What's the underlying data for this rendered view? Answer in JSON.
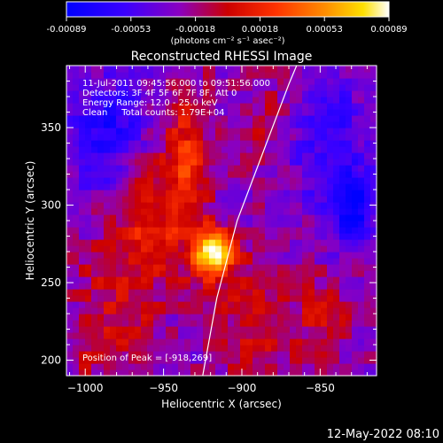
{
  "colorbar": {
    "ticks": [
      "-0.00089",
      "-0.00053",
      "-0.00018",
      "0.00018",
      "0.00053",
      "0.00089"
    ],
    "unit_label": "(photons cm⁻² s⁻¹ asec⁻²)"
  },
  "chart_data": {
    "type": "heatmap",
    "title": "Reconstructed RHESSI Image",
    "xlabel": "Heliocentric X (arcsec)",
    "ylabel": "Heliocentric Y (arcsec)",
    "xlim": [
      -1012,
      -814
    ],
    "ylim": [
      190,
      390
    ],
    "xticks": [
      -1000,
      -950,
      -900,
      -850
    ],
    "xtick_labels": [
      "−1000",
      "−950",
      "−900",
      "−850"
    ],
    "yticks": [
      200,
      250,
      300,
      350
    ],
    "ytick_labels": [
      "200",
      "250",
      "300",
      "350"
    ],
    "value_range": [
      -0.00089,
      0.00089
    ],
    "colormap": "blue-purple-red-yellow-white",
    "annotations": [
      "11-Jul-2011 09:45:56.000 to 09:51:56.000",
      "Detectors: 3F 4F 5F 6F 7F 8F, Att 0",
      "Energy Range: 12.0 - 25.0 keV",
      "Clean     Total counts: 1.79E+04",
      "Position of Peak = [-918,269]"
    ],
    "peak": {
      "x": -918,
      "y": 269,
      "value": 0.00089
    },
    "limb_line": [
      [
        -925,
        190
      ],
      [
        -916,
        240
      ],
      [
        -903,
        290
      ],
      [
        -888,
        330
      ],
      [
        -870,
        378
      ],
      [
        -865,
        390
      ]
    ],
    "sources": [
      {
        "x": -918,
        "y": 269,
        "sx": 9,
        "sy": 11,
        "amp": 0.00112
      },
      {
        "x": -935,
        "y": 325,
        "sx": 10,
        "sy": 40,
        "amp": 0.00045
      },
      {
        "x": -960,
        "y": 300,
        "sx": 14,
        "sy": 32,
        "amp": 0.00038
      },
      {
        "x": -895,
        "y": 225,
        "sx": 15,
        "sy": 25,
        "amp": 0.0003
      },
      {
        "x": -980,
        "y": 240,
        "sx": 18,
        "sy": 30,
        "amp": 0.00028
      },
      {
        "x": -850,
        "y": 225,
        "sx": 14,
        "sy": 20,
        "amp": 0.00025
      },
      {
        "x": -880,
        "y": 355,
        "sx": 15,
        "sy": 20,
        "amp": 0.0002
      },
      {
        "x": -1000,
        "y": 205,
        "sx": 12,
        "sy": 12,
        "amp": 0.00018
      },
      {
        "x": -830,
        "y": 300,
        "sx": 10,
        "sy": 15,
        "amp": -0.0006
      },
      {
        "x": -985,
        "y": 345,
        "sx": 20,
        "sy": 25,
        "amp": -0.00045
      },
      {
        "x": -845,
        "y": 345,
        "sx": 18,
        "sy": 25,
        "amp": -0.00038
      }
    ]
  },
  "footer": {
    "timestamp": "12-May-2022 08:10"
  }
}
